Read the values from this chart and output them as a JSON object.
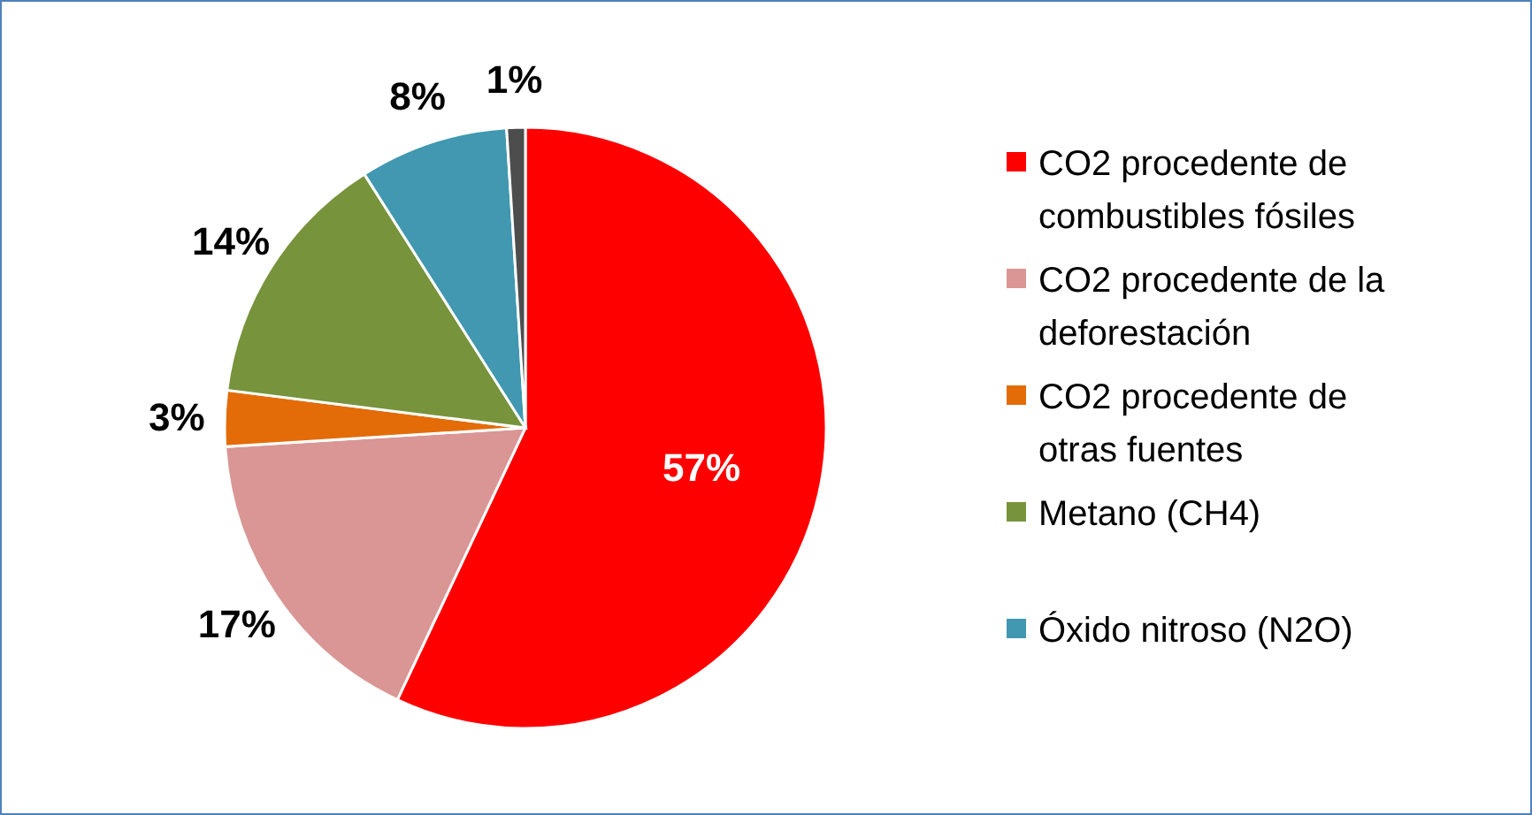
{
  "chart_data": {
    "type": "pie",
    "categories": [
      "CO2 procedente de combustibles fósiles",
      "CO2 procedente de la deforestación",
      "CO2 procedente de otras fuentes",
      "Metano (CH4)",
      "Óxido nitroso (N2O)",
      null
    ],
    "values": [
      57,
      17,
      3,
      14,
      8,
      1
    ],
    "colors": [
      "#ff0000",
      "#d99694",
      "#e36c09",
      "#77933c",
      "#4198b0",
      "#4d4d4d"
    ],
    "value_labels": [
      "57%",
      "17%",
      "3%",
      "14%",
      "8%",
      "1%"
    ],
    "legend": "right"
  }
}
